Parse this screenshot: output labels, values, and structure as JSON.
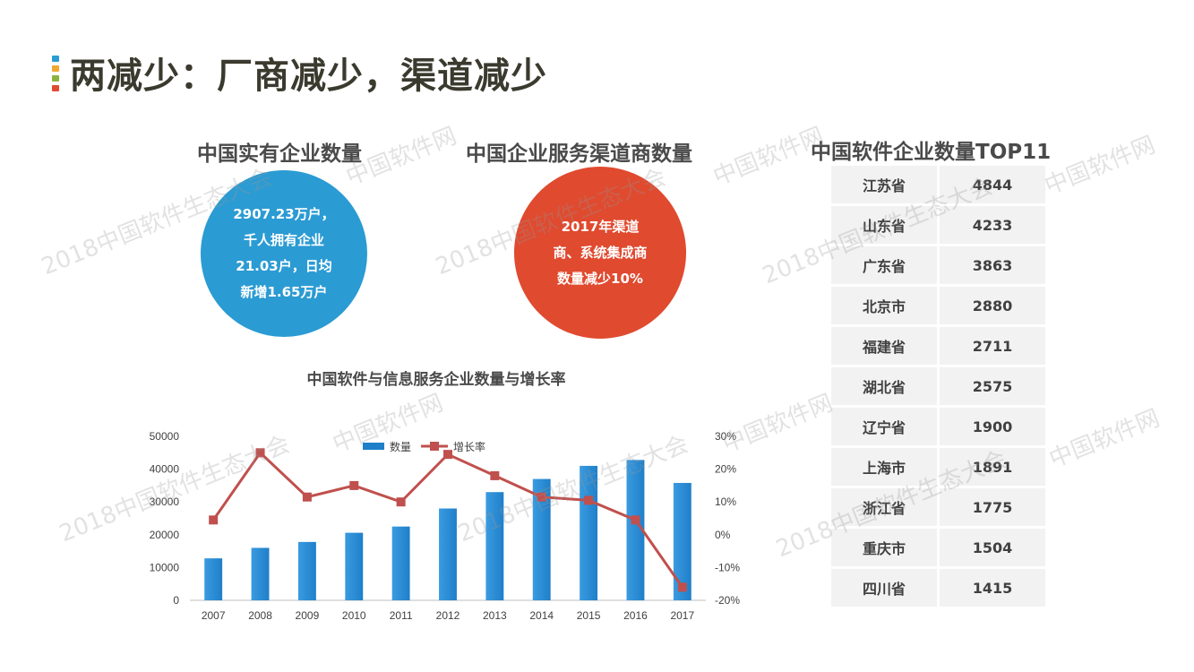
{
  "page": {
    "title": "两减少：厂商减少，渠道减少"
  },
  "title_bar_colors": [
    "#2b9bd3",
    "#f0a830",
    "#8cb33f",
    "#e04a2f"
  ],
  "enterprise_circle": {
    "title": "中国实有企业数量",
    "lines": [
      "2907.23万户，",
      "千人拥有企业",
      "21.03户，日均",
      "新增1.65万户"
    ],
    "color": "#2b9bd3"
  },
  "channel_circle": {
    "title": "中国企业服务渠道商数量",
    "lines": [
      "2017年渠道",
      "商、系统集成商",
      "数量减少10%"
    ],
    "color": "#e04a2f"
  },
  "top11": {
    "title": "中国软件企业数量TOP11",
    "rows": [
      {
        "province": "江苏省",
        "count": "4844"
      },
      {
        "province": "山东省",
        "count": "4233"
      },
      {
        "province": "广东省",
        "count": "3863"
      },
      {
        "province": "北京市",
        "count": "2880"
      },
      {
        "province": "福建省",
        "count": "2711"
      },
      {
        "province": "湖北省",
        "count": "2575"
      },
      {
        "province": "辽宁省",
        "count": "1900"
      },
      {
        "province": "上海市",
        "count": "1891"
      },
      {
        "province": "浙江省",
        "count": "1775"
      },
      {
        "province": "重庆市",
        "count": "1504"
      },
      {
        "province": "四川省",
        "count": "1415"
      }
    ]
  },
  "watermarks": [
    "2018中国软件生态大会",
    "中国软件网"
  ],
  "chart_data": {
    "type": "bar+line",
    "title": "中国软件与信息服务企业数量与增长率",
    "categories": [
      "2007",
      "2008",
      "2009",
      "2010",
      "2011",
      "2012",
      "2013",
      "2014",
      "2015",
      "2016",
      "2017"
    ],
    "series": [
      {
        "name": "数量",
        "type": "bar",
        "axis": "left",
        "values": [
          12800,
          16000,
          17800,
          20600,
          22500,
          28000,
          33000,
          37000,
          41000,
          42800,
          35800
        ],
        "color": "#1f7fc9"
      },
      {
        "name": "增长率",
        "type": "line",
        "axis": "right",
        "values": [
          4.5,
          25,
          11.5,
          15,
          10,
          24.5,
          18,
          11.5,
          10.5,
          4.5,
          -16
        ],
        "color": "#c0504d"
      }
    ],
    "left_axis": {
      "ylim": [
        0,
        50000
      ],
      "ticks": [
        "0",
        "10000",
        "20000",
        "30000",
        "40000",
        "50000"
      ]
    },
    "right_axis": {
      "ylim": [
        -20,
        30
      ],
      "ticks": [
        "-20%",
        "-10%",
        "0%",
        "10%",
        "20%",
        "30%"
      ]
    },
    "legend": "top-center"
  }
}
